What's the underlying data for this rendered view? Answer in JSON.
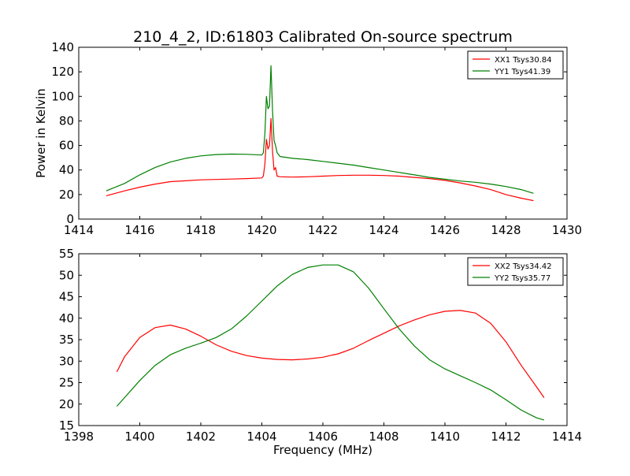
{
  "figure": {
    "title": "210_4_2, ID:61803 Calibrated On-source spectrum"
  },
  "chart_data": [
    {
      "type": "line",
      "ylabel": "Power in Kelvin",
      "xlabel": "",
      "xlim": [
        1414,
        1430
      ],
      "ylim": [
        0,
        140
      ],
      "x_ticks": [
        1414,
        1416,
        1418,
        1420,
        1422,
        1424,
        1426,
        1428,
        1430
      ],
      "y_ticks": [
        0,
        20,
        40,
        60,
        80,
        100,
        120,
        140
      ],
      "legend_position": "top-right",
      "grid": false,
      "series": [
        {
          "name": "XX1 Tsys30.84",
          "color": "#ff0000",
          "x": [
            1414.9,
            1415.5,
            1416.0,
            1416.5,
            1417.0,
            1417.5,
            1418.0,
            1418.5,
            1419.0,
            1419.5,
            1420.0,
            1420.05,
            1420.1,
            1420.15,
            1420.2,
            1420.25,
            1420.3,
            1420.35,
            1420.4,
            1420.45,
            1420.5,
            1420.6,
            1421.0,
            1421.5,
            1422.0,
            1422.5,
            1423.0,
            1423.5,
            1424.0,
            1424.5,
            1425.0,
            1425.5,
            1426.0,
            1426.5,
            1427.0,
            1427.5,
            1428.0,
            1428.5,
            1428.9
          ],
          "y": [
            19,
            23,
            26,
            28.5,
            30.5,
            31.2,
            32,
            32.3,
            32.6,
            33,
            33.5,
            35,
            45,
            65,
            57,
            60,
            82,
            55,
            40,
            42,
            35,
            34.5,
            34.2,
            34.5,
            35,
            35.5,
            35.8,
            35.8,
            35.5,
            35,
            34,
            33,
            31.5,
            29.5,
            27,
            24,
            20,
            17,
            15
          ]
        },
        {
          "name": "YY1 Tsys41.39",
          "color": "#008000",
          "x": [
            1414.9,
            1415.5,
            1416.0,
            1416.5,
            1417.0,
            1417.5,
            1418.0,
            1418.5,
            1419.0,
            1419.5,
            1420.0,
            1420.05,
            1420.1,
            1420.15,
            1420.2,
            1420.25,
            1420.3,
            1420.35,
            1420.4,
            1420.45,
            1420.5,
            1420.6,
            1421.0,
            1421.5,
            1422.0,
            1422.5,
            1423.0,
            1423.5,
            1424.0,
            1424.5,
            1425.0,
            1425.5,
            1426.0,
            1426.5,
            1427.0,
            1427.5,
            1428.0,
            1428.5,
            1428.9
          ],
          "y": [
            23,
            29,
            36,
            42,
            46.5,
            49.5,
            51.5,
            52.6,
            53,
            52.8,
            52.2,
            54,
            70,
            100,
            90,
            92,
            125,
            88,
            64,
            60,
            54,
            51,
            49.5,
            48.5,
            47,
            45.5,
            44,
            42,
            40,
            38,
            36,
            34,
            32.5,
            31,
            30,
            28.5,
            26.5,
            24,
            21
          ]
        }
      ]
    },
    {
      "type": "line",
      "ylabel": "",
      "xlabel": "Frequency (MHz)",
      "xlim": [
        1398,
        1414
      ],
      "ylim": [
        15,
        55
      ],
      "x_ticks": [
        1398,
        1400,
        1402,
        1404,
        1406,
        1408,
        1410,
        1412,
        1414
      ],
      "y_ticks": [
        15,
        20,
        25,
        30,
        35,
        40,
        45,
        50,
        55
      ],
      "legend_position": "top-right",
      "grid": false,
      "series": [
        {
          "name": "XX2 Tsys34.42",
          "color": "#ff0000",
          "x": [
            1399.25,
            1399.5,
            1400.0,
            1400.5,
            1401.0,
            1401.5,
            1402.0,
            1402.5,
            1403.0,
            1403.5,
            1404.0,
            1404.5,
            1405.0,
            1405.5,
            1406.0,
            1406.3,
            1406.5,
            1407.0,
            1407.5,
            1408.0,
            1408.5,
            1409.0,
            1409.5,
            1410.0,
            1410.5,
            1411.0,
            1411.5,
            1412.0,
            1412.5,
            1413.0,
            1413.25
          ],
          "y": [
            27.5,
            31,
            35.5,
            37.8,
            38.4,
            37.5,
            35.8,
            33.8,
            32.3,
            31.3,
            30.7,
            30.4,
            30.3,
            30.5,
            30.9,
            31.4,
            31.7,
            33,
            34.8,
            36.5,
            38.2,
            39.6,
            40.8,
            41.6,
            41.8,
            41.2,
            38.8,
            34.5,
            29,
            24,
            21.5
          ]
        },
        {
          "name": "YY2 Tsys35.77",
          "color": "#008000",
          "x": [
            1399.25,
            1399.5,
            1400.0,
            1400.5,
            1401.0,
            1401.5,
            1402.0,
            1402.5,
            1403.0,
            1403.5,
            1404.0,
            1404.5,
            1405.0,
            1405.5,
            1406.0,
            1406.5,
            1407.0,
            1407.5,
            1408.0,
            1408.5,
            1409.0,
            1409.5,
            1410.0,
            1410.5,
            1411.0,
            1411.5,
            1412.0,
            1412.5,
            1413.0,
            1413.25
          ],
          "y": [
            19.5,
            21.5,
            25.5,
            29,
            31.5,
            33,
            34.2,
            35.5,
            37.5,
            40.5,
            44,
            47.5,
            50.2,
            51.8,
            52.4,
            52.4,
            50.8,
            47,
            42.2,
            37.5,
            33.5,
            30.3,
            28.2,
            26.6,
            25,
            23.3,
            21,
            18.6,
            16.8,
            16.3
          ]
        }
      ]
    }
  ]
}
